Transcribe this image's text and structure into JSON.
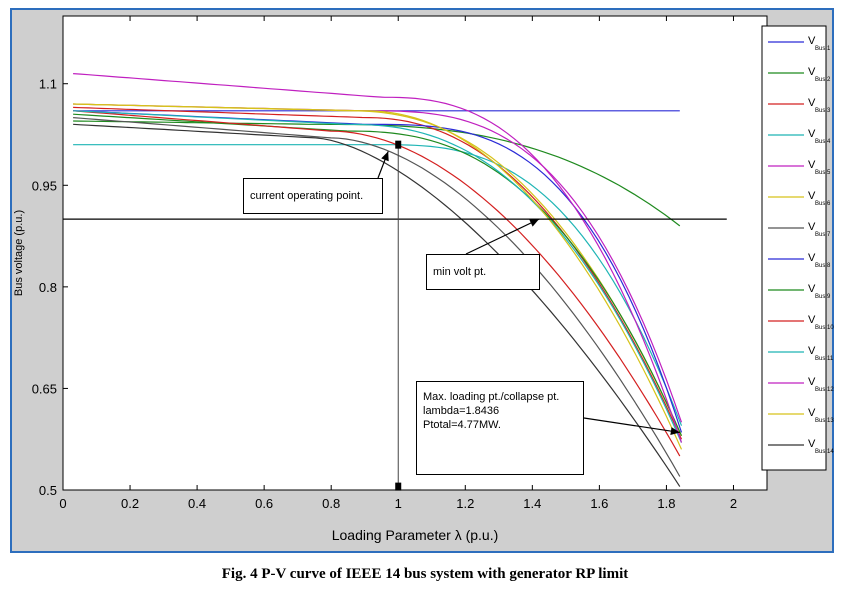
{
  "caption": "Fig. 4 P-V curve of IEEE 14 bus system with generator RP limit",
  "chart_data": {
    "type": "line",
    "title": "",
    "xlabel": "Loading Parameter λ (p.u.)",
    "ylabel": "Bus voltage (p.u.)",
    "xlim": [
      0,
      2.1
    ],
    "ylim": [
      0.5,
      1.2
    ],
    "xticks": [
      0,
      0.2,
      0.4,
      0.6,
      0.8,
      1,
      1.2,
      1.4,
      1.6,
      1.8,
      2
    ],
    "xtick_labels": [
      "0",
      "0.2",
      "0.4",
      "0.6",
      "0.8",
      "1",
      "1.2",
      "1.4",
      "1.6",
      "1.8",
      "2"
    ],
    "yticks": [
      0.5,
      0.65,
      0.8,
      0.95,
      1.1
    ],
    "ytick_labels": [
      "0.5",
      "0.65",
      "0.8",
      "0.95",
      "1.1"
    ],
    "grid": false,
    "legend_position": "right",
    "min_volt_line": {
      "y": 0.9,
      "color": "#000000"
    },
    "operating_line": {
      "x": 1,
      "y_top": 1.01,
      "y_bottom": 0.505
    },
    "annotations": [
      {
        "id": "current",
        "text": [
          "current operating point."
        ],
        "arrow_to": [
          0.97,
          1.0
        ]
      },
      {
        "id": "minvolt",
        "text": [
          "min volt pt."
        ],
        "arrow_to": [
          1.42,
          0.9
        ]
      },
      {
        "id": "maxload",
        "text": [
          "Max. loading pt./collapse pt.",
          "lambda=1.8436",
          "Ptotal=4.77MW."
        ],
        "arrow_to": [
          1.84,
          0.585
        ]
      }
    ],
    "series": [
      {
        "name": "V",
        "sub": "Bus 1",
        "color": "#2b2bd6",
        "kind": "flat",
        "x": [
          0.03,
          1.84
        ],
        "y": [
          1.06,
          1.06
        ]
      },
      {
        "name": "V",
        "sub": "Bus 2",
        "color": "#1f8a1f",
        "kind": "pv",
        "x0": 0.03,
        "v0": 1.045,
        "xk": 0.75,
        "vk": 1.04,
        "xe": 1.84,
        "ve": 0.89,
        "p": 2.8
      },
      {
        "name": "V",
        "sub": "Bus 3",
        "color": "#d42020",
        "kind": "pv",
        "x0": 0.03,
        "v0": 1.065,
        "xk": 0.9,
        "vk": 1.05,
        "xe": 1.845,
        "ve": 0.575,
        "p": 2.2
      },
      {
        "name": "V",
        "sub": "Bus 4",
        "color": "#1fb5b5",
        "kind": "pv",
        "x0": 0.03,
        "v0": 1.01,
        "xk": 0.95,
        "vk": 1.01,
        "xe": 1.845,
        "ve": 0.595,
        "p": 2.8
      },
      {
        "name": "V",
        "sub": "Bus 5",
        "color": "#c020c0",
        "kind": "pv",
        "x0": 0.03,
        "v0": 1.07,
        "xk": 0.9,
        "vk": 1.06,
        "xe": 1.845,
        "ve": 0.6,
        "p": 3.0
      },
      {
        "name": "V",
        "sub": "Bus 6",
        "color": "#d6c21a",
        "kind": "pv",
        "x0": 0.03,
        "v0": 1.07,
        "xk": 0.85,
        "vk": 1.06,
        "xe": 1.845,
        "ve": 0.58,
        "p": 2.3
      },
      {
        "name": "V",
        "sub": "Bus 7",
        "color": "#555555",
        "kind": "pv",
        "x0": 0.03,
        "v0": 1.05,
        "xk": 0.8,
        "vk": 1.02,
        "xe": 1.84,
        "ve": 0.52,
        "p": 1.8
      },
      {
        "name": "V",
        "sub": "Bus 8",
        "color": "#2b2bd6",
        "kind": "pv",
        "x0": 0.03,
        "v0": 1.06,
        "xk": 0.9,
        "vk": 1.04,
        "xe": 1.845,
        "ve": 0.585,
        "p": 3.2
      },
      {
        "name": "V",
        "sub": "Bus 9",
        "color": "#1f8a1f",
        "kind": "pv",
        "x0": 0.03,
        "v0": 1.055,
        "xk": 0.85,
        "vk": 1.03,
        "xe": 1.845,
        "ve": 0.58,
        "p": 2.5
      },
      {
        "name": "V",
        "sub": "Bus 10",
        "color": "#d42020",
        "kind": "pv",
        "x0": 0.03,
        "v0": 1.06,
        "xk": 0.8,
        "vk": 1.03,
        "xe": 1.84,
        "ve": 0.55,
        "p": 1.9
      },
      {
        "name": "V",
        "sub": "Bus 11",
        "color": "#1fb5b5",
        "kind": "pv",
        "x0": 0.03,
        "v0": 1.06,
        "xk": 0.85,
        "vk": 1.04,
        "xe": 1.845,
        "ve": 0.57,
        "p": 2.4
      },
      {
        "name": "V",
        "sub": "Bus 12",
        "color": "#c020c0",
        "kind": "pv",
        "x0": 0.03,
        "v0": 1.115,
        "xk": 0.95,
        "vk": 1.08,
        "xe": 1.845,
        "ve": 0.57,
        "p": 2.6
      },
      {
        "name": "V",
        "sub": "Bus 13",
        "color": "#d6c21a",
        "kind": "pv",
        "x0": 0.03,
        "v0": 1.07,
        "xk": 0.9,
        "vk": 1.06,
        "xe": 1.845,
        "ve": 0.56,
        "p": 2.1
      },
      {
        "name": "V",
        "sub": "Bus 14",
        "color": "#333333",
        "kind": "pv",
        "x0": 0.03,
        "v0": 1.04,
        "xk": 0.75,
        "vk": 1.02,
        "xe": 1.84,
        "ve": 0.505,
        "p": 1.6
      }
    ]
  }
}
